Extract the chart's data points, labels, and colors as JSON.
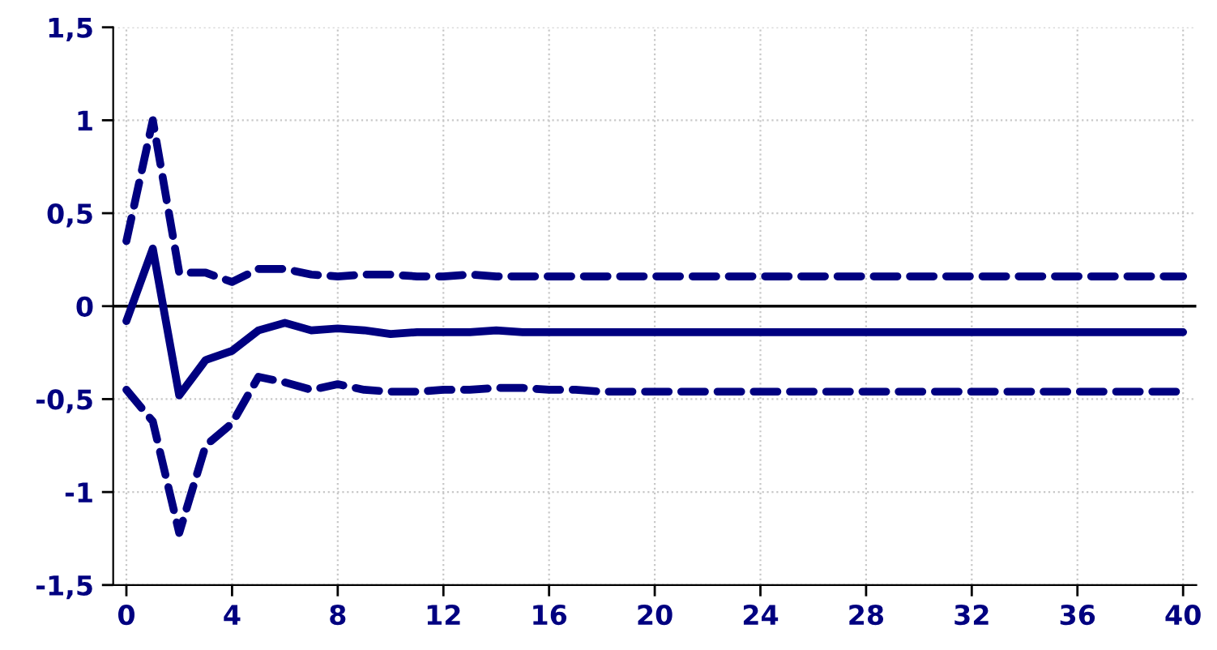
{
  "chart_data": {
    "type": "line",
    "x": [
      0,
      1,
      2,
      3,
      4,
      5,
      6,
      7,
      8,
      9,
      10,
      11,
      12,
      13,
      14,
      15,
      16,
      17,
      18,
      19,
      20,
      21,
      22,
      23,
      24,
      25,
      26,
      27,
      28,
      29,
      30,
      31,
      32,
      33,
      34,
      35,
      36,
      37,
      38,
      39,
      40
    ],
    "series": [
      {
        "color": "#000080",
        "line_style": "dashed",
        "values": [
          0.35,
          1.0,
          0.18,
          0.18,
          0.13,
          0.2,
          0.2,
          0.17,
          0.16,
          0.17,
          0.17,
          0.16,
          0.16,
          0.17,
          0.16,
          0.16,
          0.16,
          0.16,
          0.16,
          0.16,
          0.16,
          0.16,
          0.16,
          0.16,
          0.16,
          0.16,
          0.16,
          0.16,
          0.16,
          0.16,
          0.16,
          0.16,
          0.16,
          0.16,
          0.16,
          0.16,
          0.16,
          0.16,
          0.16,
          0.16,
          0.16
        ]
      },
      {
        "color": "#000080",
        "line_style": "solid",
        "values": [
          -0.08,
          0.31,
          -0.48,
          -0.29,
          -0.24,
          -0.13,
          -0.09,
          -0.13,
          -0.12,
          -0.13,
          -0.15,
          -0.14,
          -0.14,
          -0.14,
          -0.13,
          -0.14,
          -0.14,
          -0.14,
          -0.14,
          -0.14,
          -0.14,
          -0.14,
          -0.14,
          -0.14,
          -0.14,
          -0.14,
          -0.14,
          -0.14,
          -0.14,
          -0.14,
          -0.14,
          -0.14,
          -0.14,
          -0.14,
          -0.14,
          -0.14,
          -0.14,
          -0.14,
          -0.14,
          -0.14,
          -0.14
        ]
      },
      {
        "color": "#000080",
        "line_style": "dashed",
        "values": [
          -0.45,
          -0.62,
          -1.22,
          -0.75,
          -0.63,
          -0.38,
          -0.41,
          -0.45,
          -0.42,
          -0.45,
          -0.46,
          -0.46,
          -0.45,
          -0.45,
          -0.44,
          -0.44,
          -0.45,
          -0.45,
          -0.46,
          -0.46,
          -0.46,
          -0.46,
          -0.46,
          -0.46,
          -0.46,
          -0.46,
          -0.46,
          -0.46,
          -0.46,
          -0.46,
          -0.46,
          -0.46,
          -0.46,
          -0.46,
          -0.46,
          -0.46,
          -0.46,
          -0.46,
          -0.46,
          -0.46,
          -0.46
        ]
      }
    ],
    "xlim": [
      -0.5,
      40.5
    ],
    "xticks": [
      0,
      4,
      8,
      12,
      16,
      20,
      24,
      28,
      32,
      36,
      40
    ],
    "ylim": [
      -1.5,
      1.5
    ],
    "yticks": [
      {
        "value": -1.5,
        "label": "-1,5"
      },
      {
        "value": -1,
        "label": "-1"
      },
      {
        "value": -0.5,
        "label": "-0,5"
      },
      {
        "value": 0,
        "label": "0"
      },
      {
        "value": 0.5,
        "label": "0,5"
      },
      {
        "value": 1,
        "label": "1"
      },
      {
        "value": 1.5,
        "label": "1,5"
      }
    ],
    "ref_lines": [
      {
        "axis": "y",
        "value": 0,
        "color": "#000000",
        "line_style": "solid"
      }
    ],
    "grid": true,
    "legend": false,
    "marker": "none"
  }
}
